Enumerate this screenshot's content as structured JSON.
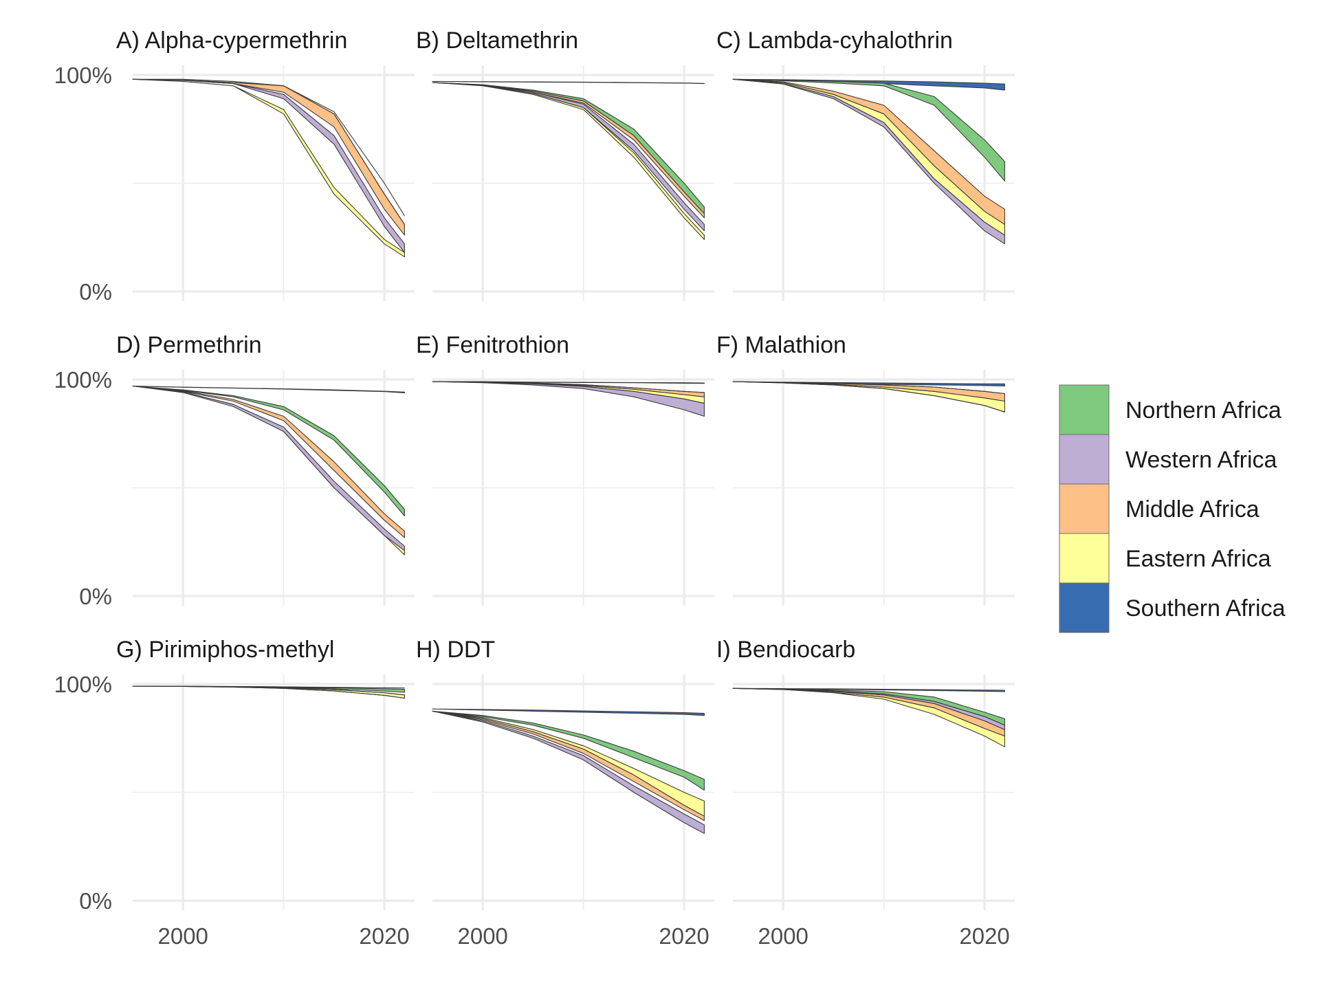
{
  "chart_data": {
    "type": "area",
    "x_ticks": [
      2000,
      2020
    ],
    "x_range": [
      1995,
      2023
    ],
    "y_ticks": [
      "0%",
      "100%"
    ],
    "ylim": [
      0,
      100
    ],
    "grid": true,
    "legend_position": "right",
    "colors": {
      "Northern Africa": "#7fc97f",
      "Western Africa": "#beaed4",
      "Middle Africa": "#fdc086",
      "Eastern Africa": "#ffff99",
      "Southern Africa": "#386cb0"
    },
    "legend": [
      "Northern Africa",
      "Western Africa",
      "Middle Africa",
      "Eastern Africa",
      "Southern Africa"
    ],
    "x": [
      1995,
      2000,
      2005,
      2010,
      2015,
      2020,
      2022
    ],
    "panels": [
      {
        "title": "A) Alpha-cypermethrin",
        "series": [
          {
            "name": "Southern Africa",
            "lower": [
              98,
              98,
              97,
              95,
              83,
              50,
              35
            ],
            "upper": [
              98,
              98,
              97,
              95,
              83,
              50,
              35
            ]
          },
          {
            "name": "Eastern Africa",
            "lower": [
              98,
              97,
              95,
              82,
              45,
              22,
              16
            ],
            "upper": [
              98,
              97,
              95,
              84,
              48,
              24,
              18
            ]
          },
          {
            "name": "Middle Africa",
            "lower": [
              98,
              97.5,
              96,
              92,
              76,
              38,
              26
            ],
            "upper": [
              98,
              97.6,
              96.5,
              95,
              82,
              45,
              31
            ]
          },
          {
            "name": "Western Africa",
            "lower": [
              98,
              97.5,
              96,
              89,
              68,
              30,
              18
            ],
            "upper": [
              98,
              97.5,
              96,
              91,
              72,
              34,
              22
            ]
          },
          {
            "name": "Northern Africa",
            "lower": [
              98,
              97.6,
              96.5,
              95,
              82,
              45,
              31
            ],
            "upper": [
              98,
              97.6,
              96.5,
              95,
              82,
              45,
              31
            ]
          }
        ]
      },
      {
        "title": "B) Deltamethrin",
        "series": [
          {
            "name": "Southern Africa",
            "lower": [
              97,
              96.8,
              96.7,
              96.6,
              96.4,
              96.2,
              96
            ],
            "upper": [
              97,
              96.9,
              96.8,
              96.7,
              96.5,
              96.3,
              96.1
            ]
          },
          {
            "name": "Eastern Africa",
            "lower": [
              96.5,
              95,
              91,
              84,
              62,
              34,
              24
            ],
            "upper": [
              96.5,
              95.2,
              91.5,
              85,
              64,
              36,
              26
            ]
          },
          {
            "name": "Middle Africa",
            "lower": [
              96.5,
              95.2,
              92,
              87,
              70,
              44,
              34
            ],
            "upper": [
              96.5,
              95.4,
              92.5,
              88,
              72,
              46,
              36
            ]
          },
          {
            "name": "Western Africa",
            "lower": [
              96.5,
              95.2,
              91.5,
              85,
              65,
              38,
              28
            ],
            "upper": [
              96.5,
              95.4,
              92,
              86.5,
              68,
              41,
              31
            ]
          },
          {
            "name": "Northern Africa",
            "lower": [
              96.5,
              95.4,
              92.5,
              88,
              72,
              46,
              36
            ],
            "upper": [
              96.5,
              95.5,
              93,
              89,
              75,
              50,
              39
            ]
          }
        ]
      },
      {
        "title": "C) Lambda-cyhalothrin",
        "series": [
          {
            "name": "Southern Africa",
            "lower": [
              98,
              97.5,
              96.8,
              96,
              95,
              94,
              93
            ],
            "upper": [
              98,
              97.8,
              97.5,
              97.2,
              96.8,
              96.2,
              95.8
            ]
          },
          {
            "name": "Eastern Africa",
            "lower": [
              98,
              96,
              90,
              78,
              52,
              32,
              26
            ],
            "upper": [
              98,
              96.5,
              91,
              82,
              58,
              37,
              31
            ]
          },
          {
            "name": "Middle Africa",
            "lower": [
              98,
              96.5,
              91,
              82,
              58,
              37,
              31
            ],
            "upper": [
              98,
              96.8,
              92.5,
              86,
              65,
              44,
              38
            ]
          },
          {
            "name": "Western Africa",
            "lower": [
              98,
              95.8,
              89,
              76,
              50,
              28,
              22
            ],
            "upper": [
              98,
              96,
              90,
              78,
              52,
              32,
              26
            ]
          },
          {
            "name": "Northern Africa",
            "lower": [
              98,
              97.3,
              96.3,
              95,
              86,
              62,
              51
            ],
            "upper": [
              98,
              97.6,
              97,
              96.2,
              90,
              70,
              60
            ]
          }
        ]
      },
      {
        "title": "D) Permethrin",
        "series": [
          {
            "name": "Southern Africa",
            "lower": [
              97,
              96.4,
              96,
              95.6,
              95,
              94.4,
              93.8
            ],
            "upper": [
              97,
              96.5,
              96.1,
              95.7,
              95.2,
              94.6,
              94.2
            ]
          },
          {
            "name": "Eastern Africa",
            "lower": [
              97,
              94,
              88,
              76,
              50,
              28,
              19
            ],
            "upper": [
              97,
              94.2,
              88.5,
              77,
              52,
              30,
              21
            ]
          },
          {
            "name": "Middle Africa",
            "lower": [
              97,
              94.5,
              90,
              81,
              58,
              35,
              27
            ],
            "upper": [
              97,
              94.8,
              90.8,
              83,
              62,
              38,
              30
            ]
          },
          {
            "name": "Western Africa",
            "lower": [
              97,
              94,
              87.5,
              76,
              50,
              28,
              21
            ],
            "upper": [
              97,
              94.2,
              88.5,
              78,
              53,
              31,
              23
            ]
          },
          {
            "name": "Northern Africa",
            "lower": [
              97,
              95,
              92,
              86,
              72,
              48,
              37
            ],
            "upper": [
              97,
              95.2,
              92.5,
              87.5,
              74,
              51,
              40
            ]
          }
        ]
      },
      {
        "title": "E) Fenitrothion",
        "series": [
          {
            "name": "Southern Africa",
            "lower": [
              99,
              98.9,
              98.7,
              98.6,
              98.5,
              98.3,
              98.2
            ],
            "upper": [
              99,
              99,
              98.8,
              98.7,
              98.6,
              98.5,
              98.4
            ]
          },
          {
            "name": "Eastern Africa",
            "lower": [
              99,
              98.6,
              98,
              96.8,
              94.5,
              91,
              89
            ],
            "upper": [
              99,
              98.7,
              98.2,
              97.2,
              95.5,
              93,
              92
            ]
          },
          {
            "name": "Middle Africa",
            "lower": [
              99,
              98.7,
              98.2,
              97.2,
              95.5,
              93,
              92
            ],
            "upper": [
              99,
              98.8,
              98.4,
              97.6,
              96.2,
              94.5,
              94
            ]
          },
          {
            "name": "Western Africa",
            "lower": [
              99,
              98.5,
              97.5,
              95.8,
              92,
              86,
              83
            ],
            "upper": [
              99,
              98.6,
              98,
              96.8,
              94.5,
              91,
              89
            ]
          },
          {
            "name": "Northern Africa",
            "lower": [
              99,
              98.8,
              98.4,
              97.6,
              96.2,
              94.5,
              94
            ],
            "upper": [
              99,
              98.8,
              98.4,
              97.6,
              96.2,
              94.5,
              94
            ]
          }
        ]
      },
      {
        "title": "F) Malathion",
        "series": [
          {
            "name": "Southern Africa",
            "lower": [
              99,
              98.6,
              98.2,
              97.8,
              97.5,
              97.2,
              97
            ],
            "upper": [
              99,
              98.8,
              98.6,
              98.4,
              98.2,
              98,
              98
            ]
          },
          {
            "name": "Eastern Africa",
            "lower": [
              99,
              98.4,
              97.5,
              95.8,
              92.5,
              88,
              85
            ],
            "upper": [
              99,
              98.5,
              97.8,
              96.5,
              94.5,
              91.5,
              90
            ]
          },
          {
            "name": "Middle Africa",
            "lower": [
              99,
              98.5,
              97.8,
              96.5,
              94.5,
              91.5,
              90
            ],
            "upper": [
              99,
              98.6,
              98.2,
              97.5,
              96.5,
              94.5,
              93.5
            ]
          },
          {
            "name": "Western Africa",
            "lower": [
              99,
              98.4,
              97.5,
              95.8,
              92.5,
              88,
              85
            ],
            "upper": [
              99,
              98.4,
              97.5,
              95.8,
              92.5,
              88,
              85
            ]
          },
          {
            "name": "Northern Africa",
            "lower": [
              99,
              98.6,
              98.2,
              97.5,
              96.5,
              94.5,
              93.5
            ],
            "upper": [
              99,
              98.6,
              98.2,
              97.5,
              96.5,
              94.5,
              93.5
            ]
          }
        ]
      },
      {
        "title": "G) Pirimiphos-methyl",
        "series": [
          {
            "name": "Southern Africa",
            "lower": [
              99,
              99,
              98.9,
              98.7,
              98.5,
              98.3,
              98.2
            ],
            "upper": [
              99,
              99,
              98.9,
              98.7,
              98.5,
              98.3,
              98.2
            ]
          },
          {
            "name": "Eastern Africa",
            "lower": [
              99,
              98.9,
              98.6,
              98,
              96.8,
              94.8,
              93.5
            ],
            "upper": [
              99,
              98.9,
              98.7,
              98.3,
              97.4,
              96,
              95
            ]
          },
          {
            "name": "Middle Africa",
            "lower": [
              99,
              98.9,
              98.6,
              98,
              96.8,
              94.8,
              93.5
            ],
            "upper": [
              99,
              98.9,
              98.6,
              98,
              96.8,
              94.8,
              93.5
            ]
          },
          {
            "name": "Western Africa",
            "lower": [
              99,
              98.9,
              98.7,
              98.3,
              97.4,
              96,
              95
            ],
            "upper": [
              99,
              98.9,
              98.7,
              98.3,
              97.4,
              96,
              95
            ]
          },
          {
            "name": "Northern Africa",
            "lower": [
              99,
              99,
              98.8,
              98.5,
              97.8,
              96.8,
              96.2
            ],
            "upper": [
              99,
              99,
              98.9,
              98.7,
              98.3,
              97.8,
              97.6
            ]
          }
        ]
      },
      {
        "title": "H) DDT",
        "series": [
          {
            "name": "Southern Africa",
            "lower": [
              88.5,
              88,
              87.5,
              87,
              86.5,
              86,
              85.5
            ],
            "upper": [
              88.5,
              88.3,
              88,
              87.6,
              87.2,
              86.8,
              86.5
            ]
          },
          {
            "name": "Eastern Africa",
            "lower": [
              87.5,
              84,
              78,
              70,
              58,
              44,
              39
            ],
            "upper": [
              87.5,
              84.5,
              79,
              71.5,
              61,
              50,
              46
            ]
          },
          {
            "name": "Middle Africa",
            "lower": [
              87.5,
              83.5,
              77,
              68,
              55,
              42,
              37
            ],
            "upper": [
              87.5,
              84,
              78,
              70,
              58,
              44,
              39
            ]
          },
          {
            "name": "Western Africa",
            "lower": [
              87.5,
              82.5,
              75,
              65,
              50,
              36,
              31
            ],
            "upper": [
              87.5,
              83,
              76,
              67,
              53,
              40,
              35
            ]
          },
          {
            "name": "Northern Africa",
            "lower": [
              87.5,
              85,
              81,
              75,
              66,
              57,
              51
            ],
            "upper": [
              87.5,
              85.5,
              82,
              76.5,
              69,
              60,
              56
            ]
          }
        ]
      },
      {
        "title": "I) Bendiocarb",
        "series": [
          {
            "name": "Southern Africa",
            "lower": [
              98,
              97.8,
              97.6,
              97.3,
              97,
              96.7,
              96.5
            ],
            "upper": [
              98,
              97.9,
              97.8,
              97.6,
              97.4,
              97.2,
              97.1
            ]
          },
          {
            "name": "Eastern Africa",
            "lower": [
              98,
              97.5,
              96,
              93,
              86,
              76,
              71
            ],
            "upper": [
              98,
              97.5,
              96.2,
              94,
              89,
              79.5,
              76
            ]
          },
          {
            "name": "Middle Africa",
            "lower": [
              98,
              97.5,
              96.2,
              94,
              89,
              79.5,
              76
            ],
            "upper": [
              98,
              97.6,
              96.6,
              95,
              91,
              83,
              79
            ]
          },
          {
            "name": "Western Africa",
            "lower": [
              98,
              97.6,
              96.6,
              95,
              91,
              83,
              79
            ],
            "upper": [
              98,
              97.7,
              96.8,
              95.5,
              92,
              85,
              81
            ]
          },
          {
            "name": "Northern Africa",
            "lower": [
              98,
              97.7,
              96.8,
              95.5,
              92,
              85,
              81
            ],
            "upper": [
              98,
              97.8,
              97.2,
              96.5,
              94,
              87,
              84
            ]
          }
        ]
      }
    ]
  }
}
